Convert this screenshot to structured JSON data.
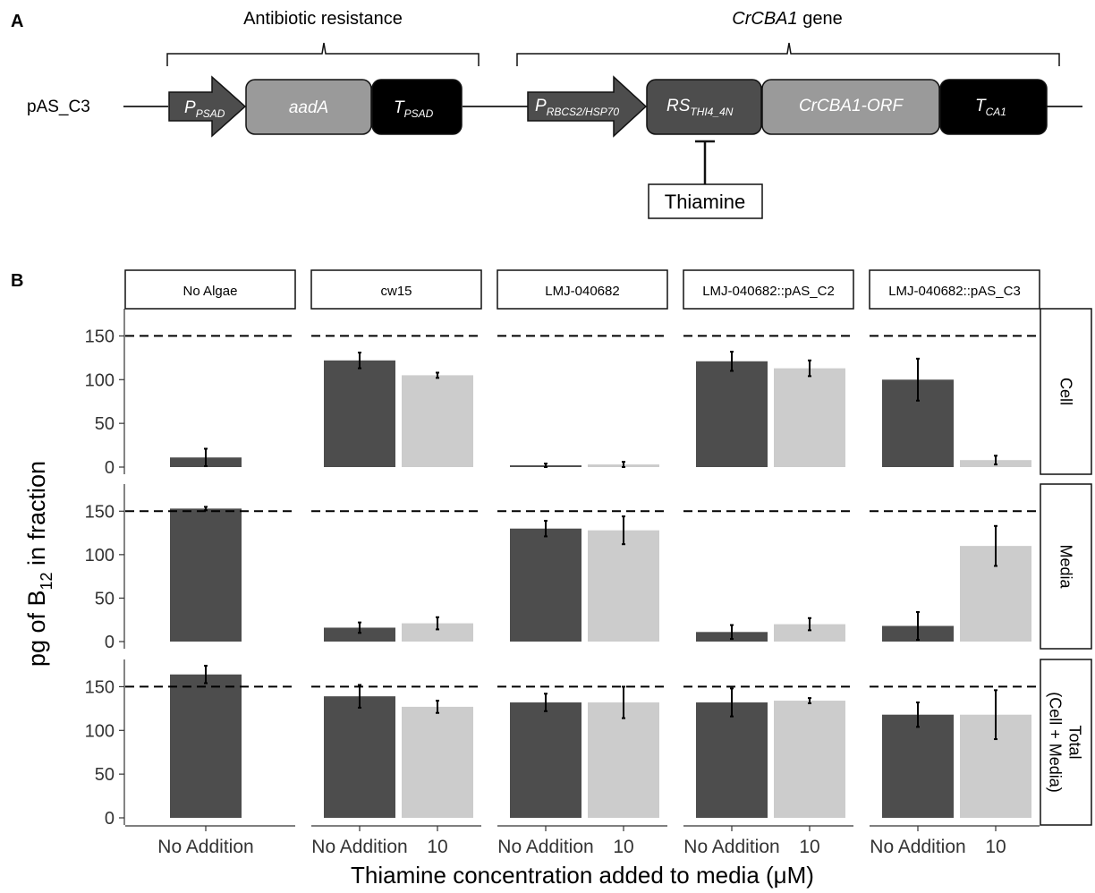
{
  "panel_labels": {
    "a": "A",
    "b": "B"
  },
  "construct": {
    "name": "pAS_C3",
    "group_left": "Antibiotic resistance",
    "group_right_italic": "CrCBA1",
    "group_right_rest": " gene",
    "parts": [
      {
        "id": "p-psad",
        "base": "P",
        "sub": "PSAD"
      },
      {
        "id": "aada",
        "base": "aadA",
        "sub": ""
      },
      {
        "id": "t-psad",
        "base": "T",
        "sub": "PSAD"
      },
      {
        "id": "p-rbcs2",
        "base": "P",
        "sub": "RBCS2/HSP70"
      },
      {
        "id": "rs-thi4",
        "base": "RS",
        "sub": "THI4_4N"
      },
      {
        "id": "crcba1-orf",
        "base": "CrCBA1-ORF",
        "sub": ""
      },
      {
        "id": "t-ca1",
        "base": "T",
        "sub": "CA1"
      }
    ],
    "repressor": "Thiamine"
  },
  "chart_data": {
    "type": "bar",
    "xlabel": "Thiamine concentration added to media (μM)",
    "ylabel_base": "pg of B",
    "ylabel_sub": "12",
    "ylabel_rest": " in fraction",
    "ylim": [
      0,
      175
    ],
    "yticks": [
      0,
      50,
      100,
      150
    ],
    "reference_line": 150,
    "columns": [
      "No Algae",
      "cw15",
      "LMJ-040682",
      "LMJ-040682::pAS_C2",
      "LMJ-040682::pAS_C3"
    ],
    "rows": [
      "Cell",
      "Media",
      "Total\n(Cell + Media)"
    ],
    "categories": [
      "No Addition",
      "10"
    ],
    "colors": {
      "No Addition": "#4d4d4d",
      "10": "#cccccc"
    },
    "values": {
      "Cell": [
        [
          {
            "x": "No Addition",
            "y": 11,
            "err": 10
          }
        ],
        [
          {
            "x": "No Addition",
            "y": 122,
            "err": 9
          },
          {
            "x": "10",
            "y": 105,
            "err": 3
          }
        ],
        [
          {
            "x": "No Addition",
            "y": 2,
            "err": 2
          },
          {
            "x": "10",
            "y": 3,
            "err": 3
          }
        ],
        [
          {
            "x": "No Addition",
            "y": 121,
            "err": 11
          },
          {
            "x": "10",
            "y": 113,
            "err": 9
          }
        ],
        [
          {
            "x": "No Addition",
            "y": 100,
            "err": 24
          },
          {
            "x": "10",
            "y": 8,
            "err": 5
          }
        ]
      ],
      "Media": [
        [
          {
            "x": "No Addition",
            "y": 153,
            "err": 2
          }
        ],
        [
          {
            "x": "No Addition",
            "y": 16,
            "err": 6
          },
          {
            "x": "10",
            "y": 21,
            "err": 7
          }
        ],
        [
          {
            "x": "No Addition",
            "y": 130,
            "err": 9
          },
          {
            "x": "10",
            "y": 128,
            "err": 16
          }
        ],
        [
          {
            "x": "No Addition",
            "y": 11,
            "err": 8
          },
          {
            "x": "10",
            "y": 20,
            "err": 7
          }
        ],
        [
          {
            "x": "No Addition",
            "y": 18,
            "err": 16
          },
          {
            "x": "10",
            "y": 110,
            "err": 23
          }
        ]
      ],
      "Total\n(Cell + Media)": [
        [
          {
            "x": "No Addition",
            "y": 164,
            "err": 10
          }
        ],
        [
          {
            "x": "No Addition",
            "y": 139,
            "err": 13
          },
          {
            "x": "10",
            "y": 127,
            "err": 7
          }
        ],
        [
          {
            "x": "No Addition",
            "y": 132,
            "err": 10
          },
          {
            "x": "10",
            "y": 132,
            "err": 18
          }
        ],
        [
          {
            "x": "No Addition",
            "y": 132,
            "err": 16
          },
          {
            "x": "10",
            "y": 134,
            "err": 3
          }
        ],
        [
          {
            "x": "No Addition",
            "y": 118,
            "err": 14
          },
          {
            "x": "10",
            "y": 118,
            "err": 28
          }
        ]
      ]
    }
  }
}
